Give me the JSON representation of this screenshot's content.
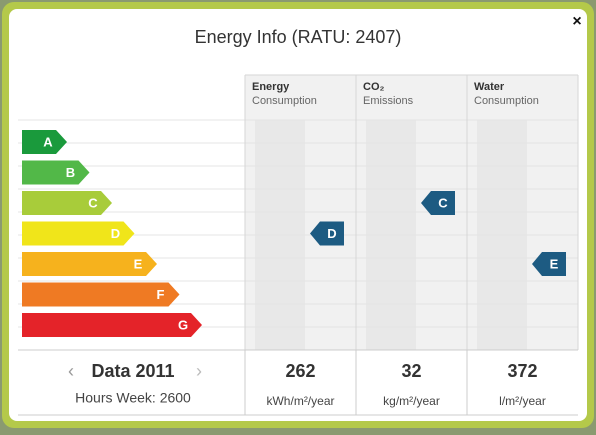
{
  "header": {
    "title": "Energy Info (RATU: 2407)",
    "close": "×"
  },
  "ratings": [
    "A",
    "B",
    "C",
    "D",
    "E",
    "F",
    "G"
  ],
  "columns": [
    {
      "title": "Energy",
      "subtitle": "Consumption",
      "rating": "D",
      "value": "262",
      "unit": "kWh/m²/year"
    },
    {
      "title": "CO₂",
      "subtitle": "Emissions",
      "rating": "C",
      "value": "32",
      "unit": "kg/m²/year"
    },
    {
      "title": "Water",
      "subtitle": "Consumption",
      "rating": "E",
      "value": "372",
      "unit": "l/m²/year"
    }
  ],
  "footer": {
    "prev": "‹",
    "period": "Data 2011",
    "next": "›",
    "hours": "Hours Week: 2600"
  }
}
